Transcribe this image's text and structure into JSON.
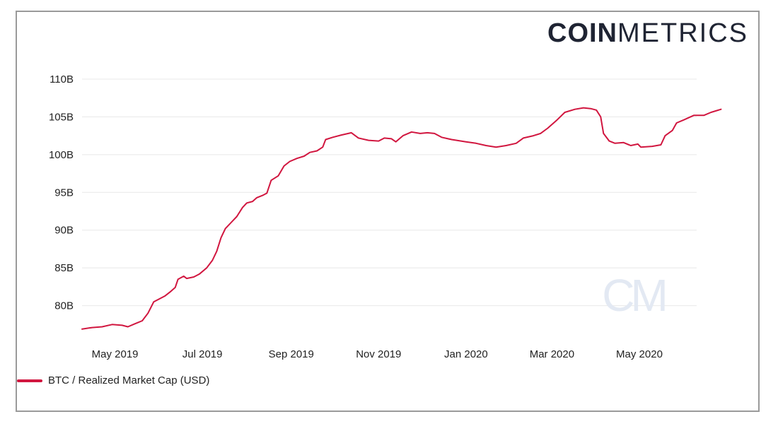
{
  "brand": {
    "bold": "COIN",
    "light": "METRICS",
    "watermark": "CM"
  },
  "colors": {
    "line": "#d1163f",
    "grid": "#e8e8e8",
    "watermark": "#e3e9f3",
    "frame": "#9a9a9a"
  },
  "legend": {
    "label": "BTC / Realized Market Cap (USD)"
  },
  "chart_data": {
    "type": "line",
    "title": "",
    "xlabel": "",
    "ylabel": "",
    "ylim": [
      76.5,
      110
    ],
    "y_ticks": [
      80,
      85,
      90,
      95,
      100,
      105,
      110
    ],
    "y_tick_labels": [
      "80B",
      "85B",
      "90B",
      "95B",
      "100B",
      "105B",
      "110B"
    ],
    "x_ticks": [
      "2019-05-01",
      "2019-07-01",
      "2019-09-01",
      "2019-11-01",
      "2020-01-01",
      "2020-03-01",
      "2020-05-01"
    ],
    "x_tick_labels": [
      "May 2019",
      "Jul 2019",
      "Sep 2019",
      "Nov 2019",
      "Jan 2020",
      "Mar 2020",
      "May 2020"
    ],
    "xlim": [
      "2019-04-08",
      "2020-06-10"
    ],
    "grid": true,
    "legend_position": "bottom-left",
    "series": [
      {
        "name": "BTC / Realized Market Cap (USD)",
        "color": "#d1163f",
        "points": [
          [
            "2019-04-08",
            76.9
          ],
          [
            "2019-04-15",
            77.1
          ],
          [
            "2019-04-22",
            77.2
          ],
          [
            "2019-04-29",
            77.5
          ],
          [
            "2019-05-06",
            77.4
          ],
          [
            "2019-05-10",
            77.2
          ],
          [
            "2019-05-15",
            77.6
          ],
          [
            "2019-05-20",
            78.0
          ],
          [
            "2019-05-24",
            79.0
          ],
          [
            "2019-05-28",
            80.5
          ],
          [
            "2019-06-01",
            80.9
          ],
          [
            "2019-06-05",
            81.3
          ],
          [
            "2019-06-09",
            81.9
          ],
          [
            "2019-06-12",
            82.4
          ],
          [
            "2019-06-14",
            83.5
          ],
          [
            "2019-06-18",
            83.9
          ],
          [
            "2019-06-20",
            83.6
          ],
          [
            "2019-06-25",
            83.8
          ],
          [
            "2019-06-29",
            84.2
          ],
          [
            "2019-07-04",
            85.0
          ],
          [
            "2019-07-08",
            86.0
          ],
          [
            "2019-07-11",
            87.2
          ],
          [
            "2019-07-14",
            89.0
          ],
          [
            "2019-07-17",
            90.2
          ],
          [
            "2019-07-21",
            91.0
          ],
          [
            "2019-07-25",
            91.8
          ],
          [
            "2019-07-29",
            93.0
          ],
          [
            "2019-08-01",
            93.6
          ],
          [
            "2019-08-05",
            93.8
          ],
          [
            "2019-08-08",
            94.3
          ],
          [
            "2019-08-12",
            94.6
          ],
          [
            "2019-08-15",
            94.9
          ],
          [
            "2019-08-18",
            96.6
          ],
          [
            "2019-08-23",
            97.2
          ],
          [
            "2019-08-27",
            98.5
          ],
          [
            "2019-08-31",
            99.1
          ],
          [
            "2019-09-05",
            99.5
          ],
          [
            "2019-09-10",
            99.8
          ],
          [
            "2019-09-14",
            100.3
          ],
          [
            "2019-09-19",
            100.5
          ],
          [
            "2019-09-23",
            101.0
          ],
          [
            "2019-09-25",
            102.0
          ],
          [
            "2019-09-30",
            102.3
          ],
          [
            "2019-10-06",
            102.6
          ],
          [
            "2019-10-13",
            102.9
          ],
          [
            "2019-10-18",
            102.2
          ],
          [
            "2019-10-25",
            101.9
          ],
          [
            "2019-11-01",
            101.8
          ],
          [
            "2019-11-05",
            102.2
          ],
          [
            "2019-11-10",
            102.1
          ],
          [
            "2019-11-13",
            101.7
          ],
          [
            "2019-11-18",
            102.5
          ],
          [
            "2019-11-24",
            103.0
          ],
          [
            "2019-11-30",
            102.8
          ],
          [
            "2019-12-05",
            102.9
          ],
          [
            "2019-12-10",
            102.8
          ],
          [
            "2019-12-15",
            102.3
          ],
          [
            "2019-12-22",
            102.0
          ],
          [
            "2020-01-01",
            101.7
          ],
          [
            "2020-01-08",
            101.5
          ],
          [
            "2020-01-15",
            101.2
          ],
          [
            "2020-01-22",
            101.0
          ],
          [
            "2020-01-29",
            101.2
          ],
          [
            "2020-02-05",
            101.5
          ],
          [
            "2020-02-10",
            102.2
          ],
          [
            "2020-02-17",
            102.5
          ],
          [
            "2020-02-22",
            102.8
          ],
          [
            "2020-02-27",
            103.5
          ],
          [
            "2020-03-04",
            104.5
          ],
          [
            "2020-03-10",
            105.6
          ],
          [
            "2020-03-17",
            106.0
          ],
          [
            "2020-03-23",
            106.2
          ],
          [
            "2020-03-28",
            106.1
          ],
          [
            "2020-04-01",
            105.9
          ],
          [
            "2020-04-04",
            105.0
          ],
          [
            "2020-04-06",
            102.8
          ],
          [
            "2020-04-10",
            101.8
          ],
          [
            "2020-04-14",
            101.5
          ],
          [
            "2020-04-20",
            101.6
          ],
          [
            "2020-04-25",
            101.2
          ],
          [
            "2020-04-30",
            101.4
          ],
          [
            "2020-05-02",
            101.0
          ],
          [
            "2020-05-10",
            101.1
          ],
          [
            "2020-05-16",
            101.3
          ],
          [
            "2020-05-19",
            102.5
          ],
          [
            "2020-05-24",
            103.2
          ],
          [
            "2020-05-27",
            104.2
          ],
          [
            "2020-06-01",
            104.6
          ],
          [
            "2020-06-08",
            105.2
          ],
          [
            "2020-06-15",
            105.2
          ],
          [
            "2020-06-20",
            105.6
          ],
          [
            "2020-06-27",
            106.0
          ]
        ]
      }
    ]
  }
}
